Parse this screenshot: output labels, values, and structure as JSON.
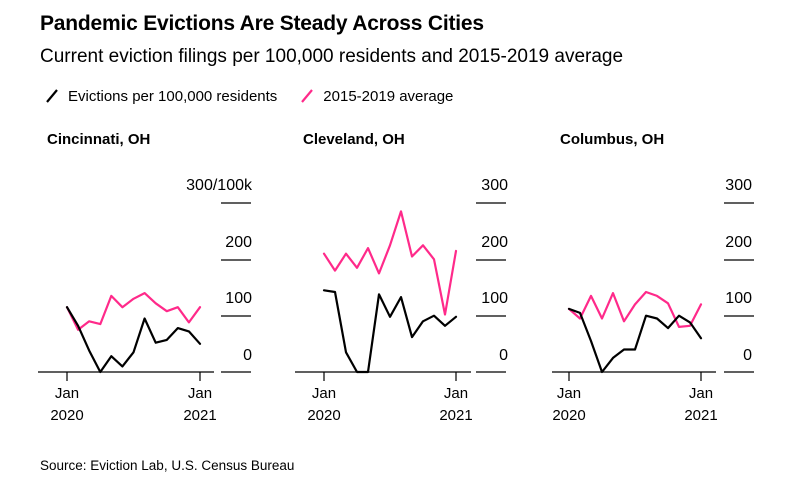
{
  "title": "Pandemic Evictions Are Steady Across Cities",
  "subtitle": "Current eviction filings per 100,000 residents and 2015-2019 average",
  "legend": {
    "current": "Evictions per 100,000 residents",
    "average": "2015-2019 average"
  },
  "colors": {
    "current": "#000000",
    "average": "#ff2a8a",
    "axis": "#000000"
  },
  "source": "Source: Eviction Lab, U.S. Census Bureau",
  "chart_data": [
    {
      "type": "line",
      "title": "Cincinnati, OH",
      "x": [
        0,
        1,
        2,
        3,
        4,
        5,
        6,
        7,
        8,
        9,
        10,
        11,
        12
      ],
      "series": [
        {
          "name": "Evictions per 100,000 residents",
          "values": [
            115,
            82,
            38,
            0,
            28,
            10,
            35,
            95,
            52,
            57,
            78,
            72,
            50
          ]
        },
        {
          "name": "2015-2019 average",
          "values": [
            115,
            75,
            90,
            85,
            135,
            115,
            130,
            140,
            122,
            108,
            115,
            88,
            115
          ]
        }
      ],
      "ylim": [
        -30,
        320
      ],
      "yticks": [
        "300/100k",
        "200",
        "100",
        "0"
      ],
      "ytick_values": [
        300,
        200,
        100,
        0
      ],
      "xtick_labels": [
        [
          "Jan",
          "2020"
        ],
        [
          "Jan",
          "2021"
        ]
      ],
      "xtick_positions": [
        0,
        12
      ]
    },
    {
      "type": "line",
      "title": "Cleveland, OH",
      "x": [
        0,
        1,
        2,
        3,
        4,
        5,
        6,
        7,
        8,
        9,
        10,
        11,
        12
      ],
      "series": [
        {
          "name": "Evictions per 100,000 residents",
          "values": [
            145,
            142,
            35,
            -30,
            -30,
            138,
            98,
            133,
            62,
            90,
            100,
            82,
            98
          ]
        },
        {
          "name": "2015-2019 average",
          "values": [
            210,
            180,
            210,
            185,
            220,
            175,
            225,
            285,
            205,
            225,
            200,
            102,
            215
          ]
        }
      ],
      "ylim": [
        -30,
        320
      ],
      "yticks": [
        "300",
        "200",
        "100",
        "0"
      ],
      "ytick_values": [
        300,
        200,
        100,
        0
      ],
      "xtick_labels": [
        [
          "Jan",
          "2020"
        ],
        [
          "Jan",
          "2021"
        ]
      ],
      "xtick_positions": [
        0,
        12
      ]
    },
    {
      "type": "line",
      "title": "Columbus, OH",
      "x": [
        0,
        1,
        2,
        3,
        4,
        5,
        6,
        7,
        8,
        9,
        10,
        11,
        12
      ],
      "series": [
        {
          "name": "Evictions per 100,000 residents",
          "values": [
            112,
            105,
            55,
            0,
            25,
            40,
            40,
            100,
            95,
            78,
            100,
            88,
            60
          ]
        },
        {
          "name": "2015-2019 average",
          "values": [
            112,
            95,
            135,
            95,
            140,
            90,
            120,
            142,
            135,
            122,
            80,
            82,
            120
          ]
        }
      ],
      "ylim": [
        -30,
        320
      ],
      "yticks": [
        "300",
        "200",
        "100",
        "0"
      ],
      "ytick_values": [
        300,
        200,
        100,
        0
      ],
      "xtick_labels": [
        [
          "Jan",
          "2020"
        ],
        [
          "Jan",
          "2021"
        ]
      ],
      "xtick_positions": [
        0,
        12
      ]
    }
  ]
}
